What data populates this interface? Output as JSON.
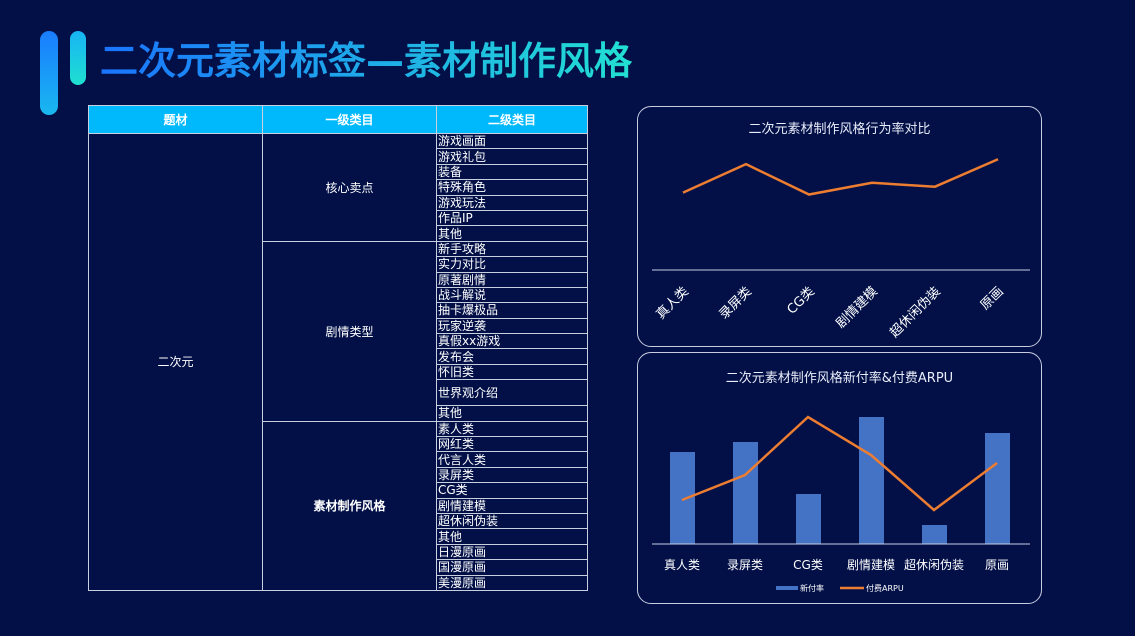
{
  "title": "二次元素材标签—素材制作风格",
  "table": {
    "headers": [
      "题材",
      "一级类目",
      "二级类目"
    ],
    "topic": "二次元",
    "groups": [
      {
        "name": "核心卖点",
        "items": [
          "游戏画面",
          "游戏礼包",
          "装备",
          "特殊角色",
          "游戏玩法",
          "作品IP",
          "其他"
        ]
      },
      {
        "name": "剧情类型",
        "items": [
          "新手攻略",
          "实力对比",
          "原著剧情",
          "战斗解说",
          "抽卡爆极品",
          "玩家逆袭",
          "真假xx游戏",
          "发布会",
          "怀旧类",
          "世界观介绍",
          "其他"
        ]
      },
      {
        "name": "素材制作风格",
        "items": [
          "素人类",
          "网红类",
          "代言人类",
          "录屏类",
          "CG类",
          "剧情建模",
          "超休闲伪装",
          "其他",
          "日漫原画",
          "国漫原画",
          "美漫原画"
        ]
      }
    ]
  },
  "chart_data": [
    {
      "type": "line",
      "title": "二次元素材制作风格行为率对比",
      "categories": [
        "真人类",
        "录屏类",
        "CG类",
        "剧情建模",
        "超休闲伪装",
        "原画"
      ],
      "values": [
        79,
        108,
        77,
        89,
        85,
        113
      ],
      "color": "#ed7d31",
      "axis_values_shown": false
    },
    {
      "type": "bar+line",
      "title": "二次元素材制作风格新付率&付费ARPU",
      "categories": [
        "真人类",
        "录屏类",
        "CG类",
        "剧情建模",
        "超休闲伪装",
        "原画"
      ],
      "series": [
        {
          "name": "新付率",
          "type": "bar",
          "values": [
            92,
            102,
            50,
            127,
            19,
            111
          ],
          "color": "#4472c4"
        },
        {
          "name": "付费ARPU",
          "type": "line",
          "values": [
            44,
            69,
            127,
            89,
            34,
            81
          ],
          "color": "#ed7d31"
        }
      ],
      "axis_values_shown": false
    }
  ]
}
